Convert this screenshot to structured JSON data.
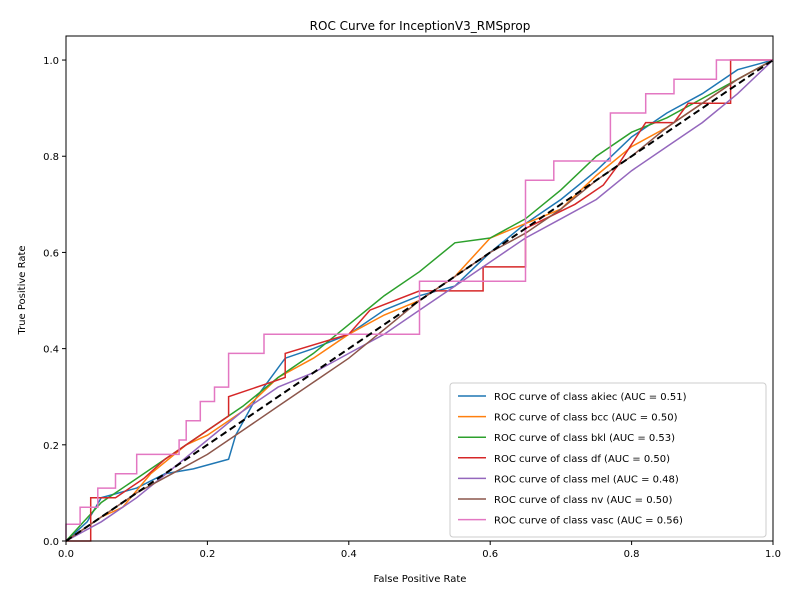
{
  "chart_data": {
    "type": "line",
    "title": "ROC Curve for InceptionV3_RMSprop",
    "xlabel": "False Positive Rate",
    "ylabel": "True Positive Rate",
    "xlim": [
      0.0,
      1.0
    ],
    "ylim": [
      0.0,
      1.05
    ],
    "x_ticks": [
      "0.0",
      "0.2",
      "0.4",
      "0.6",
      "0.8",
      "1.0"
    ],
    "y_ticks": [
      "0.0",
      "0.2",
      "0.4",
      "0.6",
      "0.8",
      "1.0"
    ],
    "grid": false,
    "legend_position": "lower-right",
    "series": [
      {
        "name": "ROC curve of class akiec (AUC = 0.51)",
        "color": "#1f77b4",
        "x": [
          0.0,
          0.03,
          0.05,
          0.1,
          0.14,
          0.18,
          0.23,
          0.24,
          0.27,
          0.31,
          0.35,
          0.4,
          0.45,
          0.5,
          0.55,
          0.6,
          0.65,
          0.7,
          0.75,
          0.8,
          0.85,
          0.9,
          0.95,
          1.0
        ],
        "y": [
          0.0,
          0.04,
          0.09,
          0.11,
          0.14,
          0.15,
          0.17,
          0.22,
          0.3,
          0.38,
          0.4,
          0.43,
          0.48,
          0.51,
          0.53,
          0.6,
          0.66,
          0.71,
          0.77,
          0.84,
          0.89,
          0.93,
          0.98,
          1.0
        ]
      },
      {
        "name": "ROC curve of class bcc (AUC = 0.50)",
        "color": "#ff7f0e",
        "x": [
          0.0,
          0.05,
          0.08,
          0.12,
          0.17,
          0.2,
          0.25,
          0.3,
          0.35,
          0.4,
          0.45,
          0.5,
          0.55,
          0.6,
          0.65,
          0.7,
          0.75,
          0.8,
          0.85,
          0.9,
          0.95,
          1.0
        ],
        "y": [
          0.0,
          0.05,
          0.07,
          0.14,
          0.2,
          0.22,
          0.27,
          0.34,
          0.38,
          0.43,
          0.47,
          0.5,
          0.55,
          0.63,
          0.66,
          0.69,
          0.76,
          0.82,
          0.86,
          0.91,
          0.96,
          1.0
        ]
      },
      {
        "name": "ROC curve of class bkl (AUC = 0.53)",
        "color": "#2ca02c",
        "x": [
          0.0,
          0.05,
          0.1,
          0.15,
          0.2,
          0.25,
          0.3,
          0.35,
          0.4,
          0.45,
          0.5,
          0.55,
          0.6,
          0.65,
          0.7,
          0.75,
          0.8,
          0.85,
          0.9,
          0.95,
          1.0
        ],
        "y": [
          0.0,
          0.08,
          0.13,
          0.18,
          0.23,
          0.28,
          0.34,
          0.39,
          0.45,
          0.51,
          0.56,
          0.62,
          0.63,
          0.67,
          0.73,
          0.8,
          0.85,
          0.88,
          0.92,
          0.96,
          1.0
        ]
      },
      {
        "name": "ROC curve of class df (AUC = 0.50)",
        "color": "#d62728",
        "x": [
          0.0,
          0.035,
          0.035,
          0.07,
          0.11,
          0.14,
          0.19,
          0.23,
          0.23,
          0.31,
          0.31,
          0.4,
          0.43,
          0.5,
          0.55,
          0.59,
          0.59,
          0.65,
          0.65,
          0.72,
          0.76,
          0.78,
          0.82,
          0.86,
          0.88,
          0.94,
          0.94,
          1.0
        ],
        "y": [
          0.0,
          0.0,
          0.09,
          0.09,
          0.13,
          0.17,
          0.22,
          0.26,
          0.3,
          0.34,
          0.39,
          0.43,
          0.48,
          0.52,
          0.52,
          0.52,
          0.57,
          0.57,
          0.65,
          0.7,
          0.74,
          0.78,
          0.87,
          0.87,
          0.91,
          0.91,
          1.0,
          1.0
        ]
      },
      {
        "name": "ROC curve of class mel (AUC = 0.48)",
        "color": "#9467bd",
        "x": [
          0.0,
          0.05,
          0.1,
          0.15,
          0.2,
          0.25,
          0.3,
          0.35,
          0.4,
          0.45,
          0.5,
          0.55,
          0.6,
          0.65,
          0.7,
          0.75,
          0.8,
          0.85,
          0.9,
          0.95,
          1.0
        ],
        "y": [
          0.0,
          0.04,
          0.09,
          0.15,
          0.21,
          0.27,
          0.32,
          0.35,
          0.39,
          0.43,
          0.48,
          0.53,
          0.58,
          0.63,
          0.67,
          0.71,
          0.77,
          0.82,
          0.87,
          0.93,
          1.0
        ]
      },
      {
        "name": "ROC curve of class nv (AUC = 0.50)",
        "color": "#8c564b",
        "x": [
          0.0,
          0.05,
          0.1,
          0.15,
          0.2,
          0.25,
          0.3,
          0.35,
          0.4,
          0.45,
          0.5,
          0.55,
          0.6,
          0.65,
          0.7,
          0.75,
          0.8,
          0.85,
          0.9,
          0.95,
          1.0
        ],
        "y": [
          0.0,
          0.05,
          0.1,
          0.14,
          0.18,
          0.23,
          0.28,
          0.33,
          0.38,
          0.44,
          0.5,
          0.55,
          0.6,
          0.64,
          0.69,
          0.75,
          0.8,
          0.86,
          0.91,
          0.96,
          1.0
        ]
      },
      {
        "name": "ROC curve of class vasc (AUC = 0.56)",
        "color": "#e377c2",
        "x": [
          0.0,
          0.0,
          0.02,
          0.02,
          0.045,
          0.045,
          0.07,
          0.07,
          0.1,
          0.1,
          0.16,
          0.16,
          0.17,
          0.17,
          0.19,
          0.19,
          0.21,
          0.21,
          0.23,
          0.23,
          0.28,
          0.28,
          0.5,
          0.5,
          0.65,
          0.65,
          0.69,
          0.69,
          0.77,
          0.77,
          0.82,
          0.82,
          0.86,
          0.86,
          0.92,
          0.92,
          1.0
        ],
        "y": [
          0.0,
          0.035,
          0.035,
          0.07,
          0.07,
          0.11,
          0.11,
          0.14,
          0.14,
          0.18,
          0.18,
          0.21,
          0.21,
          0.25,
          0.25,
          0.29,
          0.29,
          0.32,
          0.32,
          0.39,
          0.39,
          0.43,
          0.43,
          0.54,
          0.54,
          0.75,
          0.75,
          0.79,
          0.79,
          0.89,
          0.89,
          0.93,
          0.93,
          0.96,
          0.96,
          1.0,
          1.0
        ]
      }
    ],
    "reference_line": {
      "x": [
        0.0,
        1.0
      ],
      "y": [
        0.0,
        1.0
      ],
      "color": "#000000",
      "style": "dashed"
    }
  }
}
